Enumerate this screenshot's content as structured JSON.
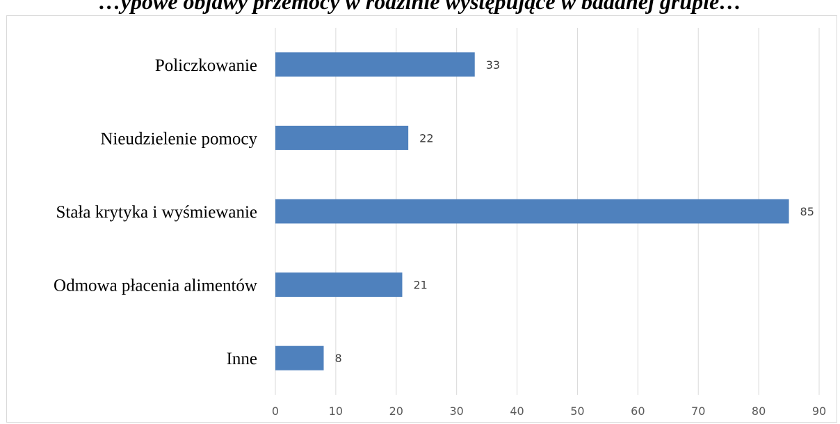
{
  "chart_data": {
    "type": "bar",
    "orientation": "horizontal",
    "title": "…ypowe objawy przemocy w rodzinie występujące w badanej grupie…",
    "categories": [
      "Policzkowanie",
      "Nieudzielenie pomocy",
      "Stała krytyka i wyśmiewanie",
      "Odmowa płacenia alimentów",
      "Inne"
    ],
    "values": [
      33,
      22,
      85,
      21,
      8
    ],
    "xlim": [
      0,
      90
    ],
    "xticks": [
      0,
      10,
      20,
      30,
      40,
      50,
      60,
      70,
      80,
      90
    ],
    "grid": true,
    "bar_color": "#4f81bd",
    "grid_color": "#d9d9d9",
    "data_labels": true,
    "legend": "none"
  }
}
